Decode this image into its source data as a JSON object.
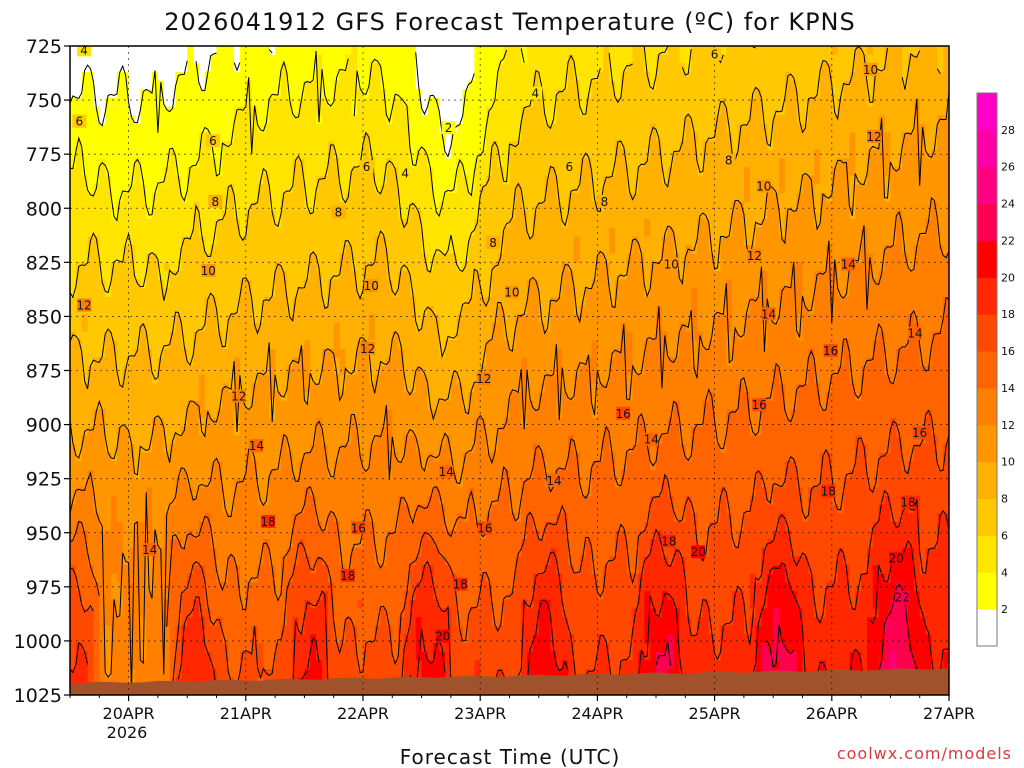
{
  "title": "2026041912 GFS Forecast Temperature (ºC) for KPNS",
  "credit": "coolwx.com/models",
  "chart_data": {
    "type": "heatmap",
    "title": "2026041912 GFS Forecast Temperature (ºC) for KPNS",
    "xlabel": "Forecast Time (UTC)",
    "ylabel": "",
    "y_scale": "pressure (hPa), decreasing upward",
    "xlim": [
      "2026-04-19 12Z",
      "2026-04-27 00Z"
    ],
    "ylim": [
      1025,
      725
    ],
    "y_ticks": [
      "725",
      "750",
      "775",
      "800",
      "825",
      "850",
      "875",
      "900",
      "925",
      "950",
      "975",
      "1000",
      "1025"
    ],
    "x_ticks": [
      "20APR",
      "21APR",
      "22APR",
      "23APR",
      "24APR",
      "25APR",
      "26APR",
      "27APR"
    ],
    "x_tick_sublabel": "2026",
    "grid": true,
    "colorbar": {
      "ticks": [
        "2",
        "4",
        "6",
        "8",
        "10",
        "12",
        "14",
        "16",
        "18",
        "20",
        "22",
        "24",
        "26",
        "28"
      ],
      "colors": [
        "#ffffff",
        "#ffff00",
        "#ffe400",
        "#ffc800",
        "#ffb000",
        "#ff9600",
        "#ff7f00",
        "#ff6400",
        "#ff4800",
        "#ff2800",
        "#ff0000",
        "#ff0050",
        "#ff0080",
        "#ff00a8",
        "#ff00c8"
      ]
    },
    "contour_levels": [
      2,
      4,
      6,
      8,
      10,
      12,
      14,
      16,
      18,
      20,
      22
    ],
    "contour_labels": [
      {
        "label": "4",
        "day": 19.62,
        "p": 727
      },
      {
        "label": "6",
        "day": 19.58,
        "p": 760
      },
      {
        "label": "6",
        "day": 20.72,
        "p": 769
      },
      {
        "label": "8",
        "day": 20.74,
        "p": 797
      },
      {
        "label": "10",
        "day": 20.68,
        "p": 829
      },
      {
        "label": "12",
        "day": 19.62,
        "p": 845
      },
      {
        "label": "14",
        "day": 20.18,
        "p": 958
      },
      {
        "label": "12",
        "day": 20.94,
        "p": 887
      },
      {
        "label": "14",
        "day": 21.09,
        "p": 910
      },
      {
        "label": "18",
        "day": 21.19,
        "p": 945
      },
      {
        "label": "16",
        "day": 21.96,
        "p": 948
      },
      {
        "label": "18",
        "day": 21.87,
        "p": 970
      },
      {
        "label": "12",
        "day": 22.04,
        "p": 865
      },
      {
        "label": "10",
        "day": 22.07,
        "p": 836
      },
      {
        "label": "8",
        "day": 21.79,
        "p": 802
      },
      {
        "label": "6",
        "day": 22.03,
        "p": 781
      },
      {
        "label": "4",
        "day": 22.36,
        "p": 784
      },
      {
        "label": "2",
        "day": 22.73,
        "p": 763
      },
      {
        "label": "4",
        "day": 23.47,
        "p": 747
      },
      {
        "label": "6",
        "day": 23.76,
        "p": 781
      },
      {
        "label": "8",
        "day": 23.11,
        "p": 816
      },
      {
        "label": "8",
        "day": 24.06,
        "p": 797
      },
      {
        "label": "10",
        "day": 23.27,
        "p": 839
      },
      {
        "label": "12",
        "day": 23.03,
        "p": 879
      },
      {
        "label": "14",
        "day": 22.71,
        "p": 922
      },
      {
        "label": "16",
        "day": 23.04,
        "p": 948
      },
      {
        "label": "18",
        "day": 22.83,
        "p": 974
      },
      {
        "label": "20",
        "day": 22.68,
        "p": 998
      },
      {
        "label": "14",
        "day": 23.63,
        "p": 926
      },
      {
        "label": "16",
        "day": 24.22,
        "p": 895
      },
      {
        "label": "14",
        "day": 24.46,
        "p": 907
      },
      {
        "label": "18",
        "day": 24.61,
        "p": 954
      },
      {
        "label": "20",
        "day": 24.86,
        "p": 959
      },
      {
        "label": "6",
        "day": 25.0,
        "p": 729
      },
      {
        "label": "8",
        "day": 25.12,
        "p": 778
      },
      {
        "label": "10",
        "day": 24.63,
        "p": 826
      },
      {
        "label": "10",
        "day": 25.42,
        "p": 790
      },
      {
        "label": "12",
        "day": 25.34,
        "p": 822
      },
      {
        "label": "14",
        "day": 25.46,
        "p": 849
      },
      {
        "label": "16",
        "day": 25.38,
        "p": 891
      },
      {
        "label": "16",
        "day": 25.99,
        "p": 866
      },
      {
        "label": "18",
        "day": 25.97,
        "p": 931
      },
      {
        "label": "14",
        "day": 26.14,
        "p": 826
      },
      {
        "label": "10",
        "day": 26.33,
        "p": 736
      },
      {
        "label": "12",
        "day": 26.36,
        "p": 767
      },
      {
        "label": "14",
        "day": 26.71,
        "p": 858
      },
      {
        "label": "16",
        "day": 26.75,
        "p": 904
      },
      {
        "label": "18",
        "day": 26.65,
        "p": 936
      },
      {
        "label": "20",
        "day": 26.55,
        "p": 962
      },
      {
        "label": "22",
        "day": 26.6,
        "p": 980
      }
    ]
  }
}
